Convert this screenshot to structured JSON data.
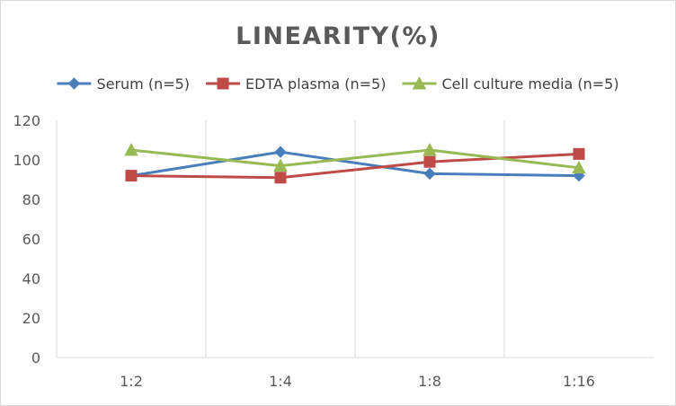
{
  "chart_data": {
    "type": "line",
    "title": "LINEARITY(%)",
    "categories": [
      "1:2",
      "1:4",
      "1:8",
      "1:16"
    ],
    "ylim": [
      0,
      120
    ],
    "yticks": [
      0,
      20,
      40,
      60,
      80,
      100,
      120
    ],
    "grid": "vertical",
    "legend_position": "top",
    "series": [
      {
        "name": "Serum (n=5)",
        "values": [
          92,
          104,
          93,
          92
        ],
        "color": "#4a7ebb",
        "marker": "diamond"
      },
      {
        "name": "EDTA plasma (n=5)",
        "values": [
          92,
          91,
          99,
          103
        ],
        "color": "#be4b48",
        "marker": "square"
      },
      {
        "name": "Cell culture media (n=5)",
        "values": [
          105,
          97,
          105,
          96
        ],
        "color": "#98b954",
        "marker": "triangle"
      }
    ]
  }
}
